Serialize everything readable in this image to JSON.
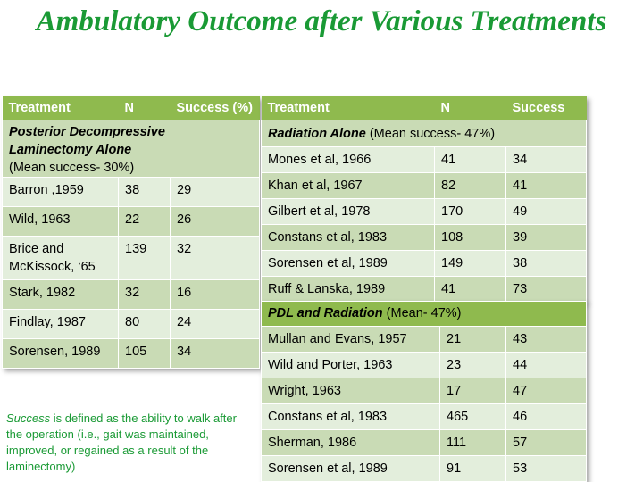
{
  "title": "Ambulatory Outcome after Various Treatments",
  "colors": {
    "title": "#1a9a35",
    "header": "#8fba4e",
    "row_light": "#e3eedc",
    "row_dark": "#c9dbb5"
  },
  "left_table": {
    "headers": [
      "Treatment",
      "N",
      "Success (%)"
    ],
    "section": {
      "title_line1": "Posterior Decompressive",
      "title_line2": "Laminectomy  Alone",
      "subtitle": "(Mean success- 30%)"
    },
    "rows": [
      {
        "treatment": "Barron ,1959",
        "n": "38",
        "success": "29"
      },
      {
        "treatment": "Wild, 1963",
        "n": "22",
        "success": "26"
      },
      {
        "treatment": "Brice and McKissock, ‘65",
        "n": "139",
        "success": "32"
      },
      {
        "treatment": "Stark, 1982",
        "n": "32",
        "success": "16"
      },
      {
        "treatment": "Findlay, 1987",
        "n": "80",
        "success": "24"
      },
      {
        "treatment": "Sorensen, 1989",
        "n": "105",
        "success": "34"
      }
    ]
  },
  "right_table": {
    "headers": [
      "Treatment",
      "N",
      "Success"
    ],
    "section": {
      "title": "Radiation Alone",
      "subtitle": " (Mean success- 47%)"
    },
    "rows": [
      {
        "treatment": "Mones et al, 1966",
        "n": "41",
        "success": "34"
      },
      {
        "treatment": "Khan et al, 1967",
        "n": "82",
        "success": "41"
      },
      {
        "treatment": "Gilbert et al, 1978",
        "n": "170",
        "success": "49"
      },
      {
        "treatment": "Constans et al, 1983",
        "n": "108",
        "success": "39"
      },
      {
        "treatment": "Sorensen et al, 1989",
        "n": "149",
        "success": "38"
      },
      {
        "treatment": "Ruff & Lanska, 1989",
        "n": "41",
        "success": "73"
      }
    ]
  },
  "pdl_table": {
    "section": {
      "title": "PDL and Radiation",
      "subtitle": "  (Mean- 47%)"
    },
    "rows": [
      {
        "treatment": "Mullan and Evans, 1957",
        "n": "21",
        "success": "43"
      },
      {
        "treatment": "Wild and Porter, 1963",
        "n": "23",
        "success": "44"
      },
      {
        "treatment": "Wright, 1963",
        "n": "17",
        "success": "47"
      },
      {
        "treatment": "Constans et al, 1983",
        "n": "465",
        "success": "46"
      },
      {
        "treatment": "Sherman, 1986",
        "n": "111",
        "success": "57"
      },
      {
        "treatment": "Sorensen et al, 1989",
        "n": "91",
        "success": "53"
      }
    ]
  },
  "note": {
    "italic": "Success",
    "text": " is defined as the ability to walk after the operation (i.e., gait was maintained, improved, or regained as a result of the laminectomy)"
  }
}
